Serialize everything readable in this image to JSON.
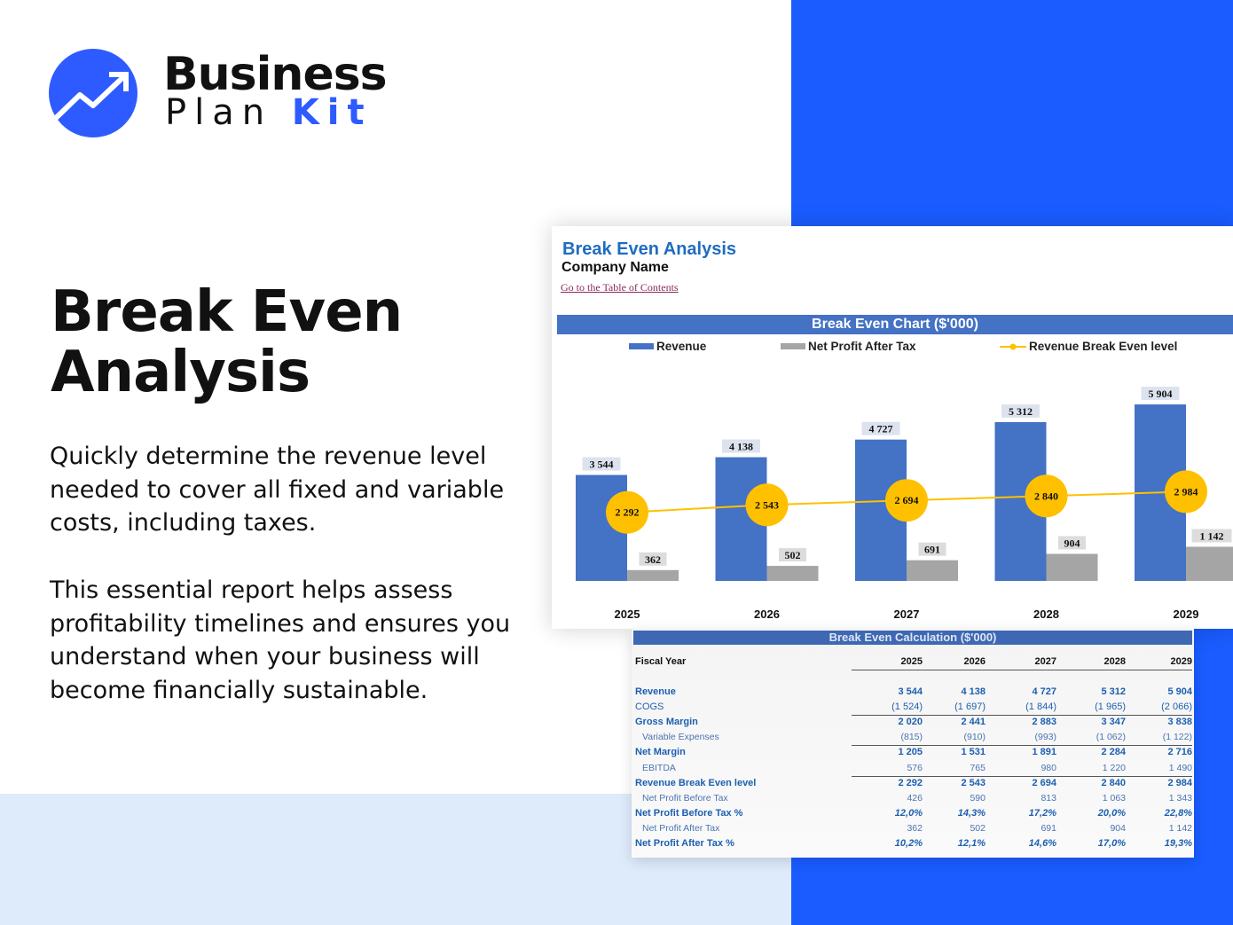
{
  "brand": {
    "line1": "Business",
    "line2a": "Plan ",
    "line2b": "Kit",
    "accent": "#2e5bff"
  },
  "hero": {
    "title": "Break Even Analysis",
    "p1": "Quickly determine the revenue level needed to cover all fixed and variable costs, including taxes.",
    "p2": "This essential report helps assess profitability timelines and ensures you understand when your business will become financially sustainable."
  },
  "sheet": {
    "title": "Break Even Analysis",
    "company": "Company Name",
    "toc_link": "Go to the Table of Contents"
  },
  "chart_data": {
    "type": "bar",
    "title": "Break Even Chart ($'000)",
    "categories": [
      "2025",
      "2026",
      "2027",
      "2028",
      "2029"
    ],
    "series": [
      {
        "name": "Revenue",
        "type": "bar",
        "color": "#4472c4",
        "values": [
          3544,
          4138,
          4727,
          5312,
          5904
        ],
        "labels": [
          "3 544",
          "4 138",
          "4 727",
          "5 312",
          "5 904"
        ]
      },
      {
        "name": "Net Profit After Tax",
        "type": "bar",
        "color": "#a5a5a5",
        "values": [
          362,
          502,
          691,
          904,
          1142
        ],
        "labels": [
          "362",
          "502",
          "691",
          "904",
          "1 142"
        ]
      },
      {
        "name": "Revenue Break Even level",
        "type": "line",
        "color": "#ffc000",
        "values": [
          2292,
          2543,
          2694,
          2840,
          2984
        ],
        "labels": [
          "2 292",
          "2 543",
          "2 694",
          "2 840",
          "2 984"
        ]
      }
    ],
    "legend": "top",
    "grid": false
  },
  "table": {
    "title": "Break Even Calculation ($'000)",
    "header": {
      "label": "Fiscal Year",
      "values": [
        "2025",
        "2026",
        "2027",
        "2028",
        "2029"
      ]
    },
    "rows": [
      {
        "label": "Revenue",
        "style": "b",
        "values": [
          "3 544",
          "4 138",
          "4 727",
          "5 312",
          "5 904"
        ]
      },
      {
        "label": "COGS",
        "style": "",
        "values": [
          "(1 524)",
          "(1 697)",
          "(1 844)",
          "(1 965)",
          "(2 066)"
        ]
      },
      {
        "label": "Gross Margin",
        "style": "b",
        "values": [
          "2 020",
          "2 441",
          "2 883",
          "3 347",
          "3 838"
        ]
      },
      {
        "label": "Variable Expenses",
        "style": "sub",
        "values": [
          "(815)",
          "(910)",
          "(993)",
          "(1 062)",
          "(1 122)"
        ]
      },
      {
        "label": "Net Margin",
        "style": "b",
        "values": [
          "1 205",
          "1 531",
          "1 891",
          "2 284",
          "2 716"
        ]
      },
      {
        "label": "EBITDA",
        "style": "sub",
        "values": [
          "576",
          "765",
          "980",
          "1 220",
          "1 490"
        ]
      },
      {
        "label": "Revenue Break Even level",
        "style": "b",
        "values": [
          "2 292",
          "2 543",
          "2 694",
          "2 840",
          "2 984"
        ]
      },
      {
        "label": "Net Profit Before Tax",
        "style": "sub",
        "values": [
          "426",
          "590",
          "813",
          "1 063",
          "1 343"
        ]
      },
      {
        "label": "Net Profit Before Tax %",
        "style": "b pct",
        "values": [
          "12,0%",
          "14,3%",
          "17,2%",
          "20,0%",
          "22,8%"
        ]
      },
      {
        "label": "Net Profit After Tax",
        "style": "sub",
        "values": [
          "362",
          "502",
          "691",
          "904",
          "1 142"
        ]
      },
      {
        "label": "Net Profit After Tax %",
        "style": "b pct",
        "values": [
          "10,2%",
          "12,1%",
          "14,6%",
          "17,0%",
          "19,3%"
        ]
      }
    ]
  }
}
